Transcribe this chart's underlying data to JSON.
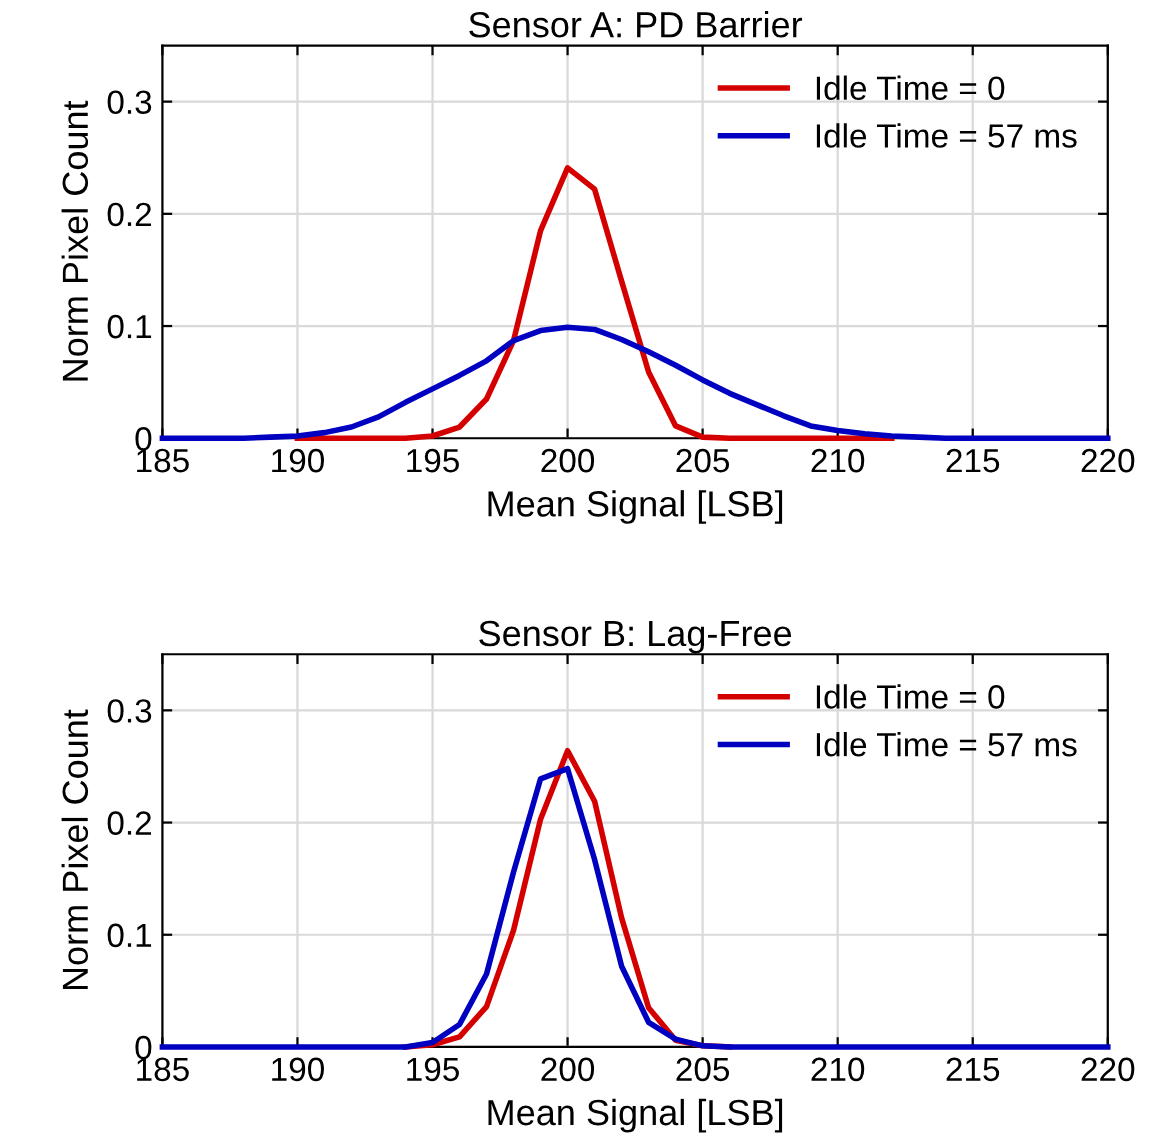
{
  "chart_data": [
    {
      "type": "line",
      "title": "Sensor A: PD Barrier",
      "xlabel": "Mean Signal [LSB]",
      "ylabel": "Norm Pixel Count",
      "x": [
        185,
        186,
        187,
        188,
        189,
        190,
        191,
        192,
        193,
        194,
        195,
        196,
        197,
        198,
        199,
        200,
        201,
        202,
        203,
        204,
        205,
        206,
        207,
        208,
        209,
        210,
        211,
        212,
        213,
        214,
        215,
        216,
        217,
        218,
        219,
        220
      ],
      "series": [
        {
          "name": "Idle Time = 0",
          "color": "#d40000",
          "values": [
            null,
            null,
            null,
            null,
            null,
            0,
            0,
            0,
            0,
            0,
            0.002,
            0.01,
            0.035,
            0.087,
            0.185,
            0.241,
            0.222,
            0.14,
            0.059,
            0.011,
            0.001,
            0,
            0,
            0,
            0,
            0,
            0,
            0,
            null,
            null,
            null,
            null,
            null,
            null,
            null,
            null
          ]
        },
        {
          "name": "Idle Time = 57 ms",
          "color": "#0000c0",
          "values": [
            0,
            0,
            0,
            0,
            0.001,
            0.002,
            0.005,
            0.01,
            0.019,
            0.032,
            0.044,
            0.056,
            0.069,
            0.087,
            0.096,
            0.099,
            0.097,
            0.088,
            0.077,
            0.065,
            0.052,
            0.04,
            0.03,
            0.02,
            0.011,
            0.007,
            0.004,
            0.002,
            0.001,
            0,
            0,
            0,
            0,
            0,
            0,
            0
          ]
        }
      ],
      "xlim": [
        185,
        220
      ],
      "xticks": [
        185,
        190,
        195,
        200,
        205,
        210,
        215,
        220
      ],
      "ylim": [
        0,
        0.35
      ],
      "yticks": [
        0,
        0.1,
        0.2,
        0.3
      ],
      "grid": true,
      "legend": "top right"
    },
    {
      "type": "line",
      "title": "Sensor B: Lag-Free",
      "xlabel": "Mean Signal [LSB]",
      "ylabel": "Norm Pixel Count",
      "x": [
        185,
        186,
        187,
        188,
        189,
        190,
        191,
        192,
        193,
        194,
        195,
        196,
        197,
        198,
        199,
        200,
        201,
        202,
        203,
        204,
        205,
        206,
        207,
        208,
        209,
        210,
        211,
        212,
        213,
        214,
        215,
        216,
        217,
        218,
        219,
        220
      ],
      "series": [
        {
          "name": "Idle Time = 0",
          "color": "#d40000",
          "values": [
            null,
            null,
            null,
            null,
            null,
            null,
            null,
            null,
            null,
            0,
            0.002,
            0.009,
            0.036,
            0.104,
            0.203,
            0.264,
            0.219,
            0.115,
            0.035,
            0.006,
            0.001,
            0,
            null,
            null,
            null,
            null,
            null,
            null,
            null,
            null,
            null,
            null,
            null,
            null,
            null,
            null
          ]
        },
        {
          "name": "Idle Time = 57 ms",
          "color": "#0000c0",
          "values": [
            0,
            0,
            0,
            0,
            0,
            0,
            0,
            0,
            0,
            0,
            0.004,
            0.02,
            0.065,
            0.156,
            0.239,
            0.248,
            0.167,
            0.072,
            0.022,
            0.007,
            0.001,
            0,
            0,
            0,
            0,
            0,
            0,
            0,
            0,
            0,
            0,
            0,
            0,
            0,
            0,
            0
          ]
        }
      ],
      "xlim": [
        185,
        220
      ],
      "xticks": [
        185,
        190,
        195,
        200,
        205,
        210,
        215,
        220
      ],
      "ylim": [
        0,
        0.35
      ],
      "yticks": [
        0,
        0.1,
        0.2,
        0.3
      ],
      "grid": true,
      "legend": "top right"
    }
  ]
}
